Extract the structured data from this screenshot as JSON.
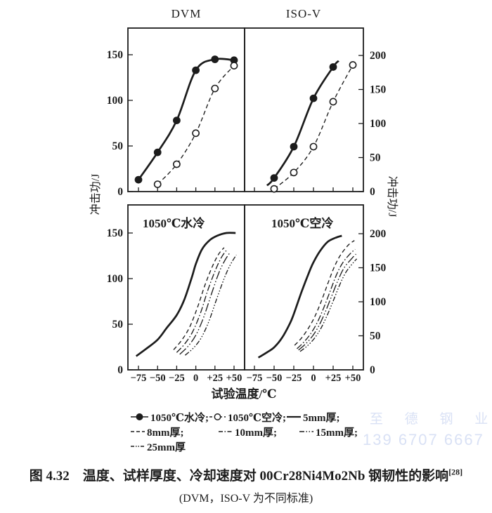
{
  "colors": {
    "ink": "#1c1c1c",
    "background": "#ffffff",
    "watermark": "#d9e1f5"
  },
  "chart_data": [
    {
      "id": "dvm-top-left",
      "type": "line",
      "title": "DVM",
      "ylabel": "冲击功/J",
      "y_axis_side": "left",
      "yticks": [
        0,
        50,
        100,
        150
      ],
      "xticks": [
        -75,
        -50,
        -25,
        0,
        25,
        50
      ],
      "xtick_labels": [
        "−75",
        "−50",
        "−25",
        "0",
        "+25",
        "+50"
      ],
      "show_xtick_labels": false,
      "grid": false,
      "series": [
        {
          "name": "1050℃水冷",
          "line": "solid",
          "thick": true,
          "marker": "filled-circle",
          "points": [
            [
              -75,
              13
            ],
            [
              -50,
              43
            ],
            [
              -25,
              78
            ],
            [
              0,
              133
            ],
            [
              25,
              145
            ],
            [
              50,
              144
            ]
          ]
        },
        {
          "name": "1050℃空冷",
          "line": "dashed",
          "marker": "open-circle",
          "points": [
            [
              -50,
              8
            ],
            [
              -25,
              30
            ],
            [
              0,
              64
            ],
            [
              25,
              113
            ],
            [
              50,
              138
            ]
          ]
        }
      ]
    },
    {
      "id": "isov-top-right",
      "type": "line",
      "title": "ISO-V",
      "ylabel": "冲击功/J",
      "y_axis_side": "right",
      "yticks": [
        0,
        50,
        100,
        150,
        200
      ],
      "xticks": [
        -75,
        -50,
        -25,
        0,
        25,
        50
      ],
      "xtick_labels": [
        "−75",
        "−50",
        "−25",
        "0",
        "+25",
        "+50"
      ],
      "show_xtick_labels": false,
      "grid": false,
      "series": [
        {
          "name": "1050℃水冷",
          "line": "solid",
          "thick": true,
          "marker": "filled-circle",
          "curve_points": [
            [
              -59,
              9
            ],
            [
              -50,
              20
            ],
            [
              -25,
              66
            ],
            [
              0,
              137
            ],
            [
              25,
              183
            ],
            [
              32,
              192
            ]
          ],
          "points": [
            [
              -50,
              20
            ],
            [
              -25,
              66
            ],
            [
              0,
              137
            ],
            [
              25,
              183
            ]
          ]
        },
        {
          "name": "1050℃空冷",
          "line": "dashed",
          "marker": "open-circle",
          "points": [
            [
              -50,
              4
            ],
            [
              -25,
              28
            ],
            [
              0,
              66
            ],
            [
              25,
              132
            ],
            [
              50,
              186
            ]
          ]
        }
      ]
    },
    {
      "id": "water-cooled-bottom-left",
      "type": "line",
      "inner_label": "1050℃水冷",
      "xlabel": "试验温度/℃",
      "y_axis_side": "left",
      "yticks": [
        0,
        50,
        100,
        150
      ],
      "xticks": [
        -75,
        -50,
        -25,
        0,
        25,
        50
      ],
      "xtick_labels": [
        "−75",
        "−50",
        "−25",
        "0",
        "+25",
        "+50"
      ],
      "show_xtick_labels": true,
      "grid": false,
      "series": [
        {
          "name": "5mm厚",
          "line": "solid",
          "thick": true,
          "points": [
            [
              -78,
              15
            ],
            [
              -65,
              23
            ],
            [
              -50,
              33
            ],
            [
              -38,
              46
            ],
            [
              -25,
              60
            ],
            [
              -15,
              77
            ],
            [
              -5,
              102
            ],
            [
              0,
              116
            ],
            [
              8,
              132
            ],
            [
              18,
              142
            ],
            [
              28,
              147
            ],
            [
              40,
              150
            ],
            [
              52,
              150
            ]
          ]
        },
        {
          "name": "8mm厚",
          "line": "dashed",
          "points": [
            [
              -29,
              22
            ],
            [
              -18,
              33
            ],
            [
              -8,
              47
            ],
            [
              2,
              68
            ],
            [
              12,
              93
            ],
            [
              22,
              114
            ],
            [
              30,
              127
            ],
            [
              37,
              134
            ]
          ]
        },
        {
          "name": "10mm厚",
          "line": "dashdot",
          "points": [
            [
              -25,
              19
            ],
            [
              -14,
              29
            ],
            [
              -4,
              42
            ],
            [
              6,
              62
            ],
            [
              16,
              88
            ],
            [
              26,
              110
            ],
            [
              34,
              124
            ],
            [
              41,
              132
            ]
          ]
        },
        {
          "name": "15mm厚",
          "line": "dashdotdot",
          "points": [
            [
              -21,
              17
            ],
            [
              -10,
              26
            ],
            [
              0,
              38
            ],
            [
              10,
              57
            ],
            [
              20,
              82
            ],
            [
              30,
              106
            ],
            [
              38,
              120
            ],
            [
              45,
              129
            ]
          ]
        },
        {
          "name": "25mm厚",
          "line": "finedash",
          "points": [
            [
              -14,
              16
            ],
            [
              -3,
              24
            ],
            [
              7,
              35
            ],
            [
              17,
              53
            ],
            [
              27,
              77
            ],
            [
              37,
              100
            ],
            [
              45,
              115
            ],
            [
              53,
              126
            ]
          ]
        }
      ]
    },
    {
      "id": "air-cooled-bottom-right",
      "type": "line",
      "inner_label": "1050℃空冷",
      "y_axis_side": "right",
      "yticks": [
        0,
        50,
        100,
        150,
        200
      ],
      "xticks": [
        -75,
        -50,
        -25,
        0,
        25,
        50
      ],
      "xtick_labels": [
        "−75",
        "−50",
        "−25",
        "0",
        "+25",
        "+50"
      ],
      "show_xtick_labels": true,
      "grid": false,
      "series": [
        {
          "name": "5mm厚",
          "line": "solid",
          "thick": true,
          "points": [
            [
              -70,
              18
            ],
            [
              -60,
              25
            ],
            [
              -50,
              33
            ],
            [
              -40,
              47
            ],
            [
              -30,
              68
            ],
            [
              -25,
              82
            ],
            [
              -15,
              115
            ],
            [
              -5,
              145
            ],
            [
              0,
              158
            ],
            [
              8,
              174
            ],
            [
              18,
              188
            ],
            [
              28,
              194
            ],
            [
              36,
              197
            ]
          ]
        },
        {
          "name": "8mm厚",
          "line": "dashed",
          "points": [
            [
              -24,
              36
            ],
            [
              -15,
              47
            ],
            [
              -6,
              62
            ],
            [
              2,
              79
            ],
            [
              10,
              101
            ],
            [
              18,
              126
            ],
            [
              26,
              150
            ],
            [
              34,
              168
            ],
            [
              44,
              183
            ],
            [
              52,
              190
            ]
          ]
        },
        {
          "name": "10mm厚",
          "line": "dashdot",
          "points": [
            [
              -21,
              31
            ],
            [
              -12,
              41
            ],
            [
              -3,
              54
            ],
            [
              5,
              70
            ],
            [
              13,
              91
            ],
            [
              21,
              115
            ],
            [
              29,
              139
            ],
            [
              37,
              157
            ],
            [
              47,
              171
            ],
            [
              53,
              177
            ]
          ]
        },
        {
          "name": "15mm厚",
          "line": "dashdotdot",
          "points": [
            [
              -19,
              29
            ],
            [
              -10,
              38
            ],
            [
              -1,
              50
            ],
            [
              7,
              65
            ],
            [
              15,
              85
            ],
            [
              23,
              108
            ],
            [
              31,
              131
            ],
            [
              39,
              150
            ],
            [
              49,
              164
            ],
            [
              54,
              170
            ]
          ]
        },
        {
          "name": "25mm厚",
          "line": "finedash",
          "points": [
            [
              -17,
              27
            ],
            [
              -8,
              35
            ],
            [
              1,
              46
            ],
            [
              9,
              60
            ],
            [
              17,
              79
            ],
            [
              25,
              101
            ],
            [
              33,
              124
            ],
            [
              41,
              143
            ],
            [
              51,
              158
            ],
            [
              55,
              163
            ]
          ]
        }
      ]
    }
  ],
  "legend": {
    "rows": [
      [
        {
          "swatch": "solid-filled-circle",
          "label": "1050℃水冷;"
        },
        {
          "swatch": "dashed-open-circle",
          "label": "1050℃空冷;"
        },
        {
          "swatch": "solid",
          "label": " 5mm厚;"
        }
      ],
      [
        {
          "swatch": "dashed",
          "label": " 8mm厚;"
        },
        {
          "swatch": "dashdot",
          "label": "10mm厚;"
        },
        {
          "swatch": "dashdotdot",
          "label": "15mm厚;"
        }
      ],
      [
        {
          "swatch": "finedash",
          "label": "25mm厚"
        }
      ]
    ]
  },
  "caption": {
    "line1": "图 4.32　温度、试样厚度、冷却速度对 00Cr28Ni4Mo2Nb 钢韧性的影响",
    "ref": "[28]",
    "line2": "(DVM，ISO-V 为不同标准)"
  },
  "watermark": {
    "line1": "至 德 钢 业",
    "line2": "139 6707 6667"
  }
}
